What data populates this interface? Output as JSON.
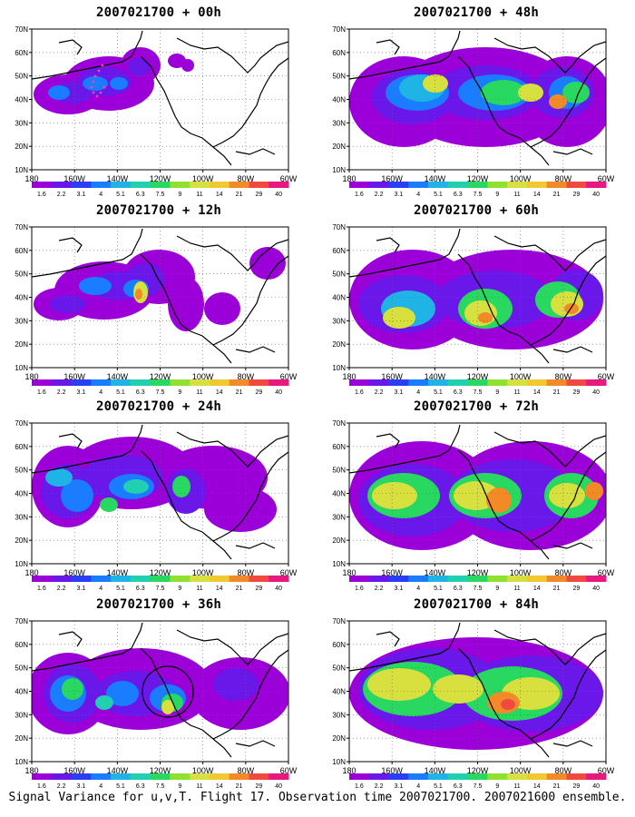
{
  "colorbar": {
    "labels": [
      "1.6",
      "2.2",
      "3.1",
      "4",
      "5.1",
      "6.3",
      "7.5",
      "9",
      "11",
      "14",
      "21",
      "29",
      "40"
    ],
    "colors": [
      "#9b00d8",
      "#6a18ea",
      "#2a3ff5",
      "#1a7cff",
      "#20b4e6",
      "#20d0b0",
      "#28d860",
      "#90e030",
      "#d8e040",
      "#f2c830",
      "#f28a28",
      "#f04a40",
      "#e81880"
    ]
  },
  "axes": {
    "lat_labels": [
      "70N",
      "60N",
      "50N",
      "40N",
      "30N",
      "20N",
      "10N"
    ],
    "lon_labels": [
      "180",
      "160W",
      "140W",
      "120W",
      "100W",
      "80W",
      "60W"
    ]
  },
  "panels": [
    {
      "title": "2007021700 + 00h",
      "level": 0
    },
    {
      "title": "2007021700 + 12h",
      "level": 1
    },
    {
      "title": "2007021700 + 24h",
      "level": 2
    },
    {
      "title": "2007021700 + 36h",
      "level": 3
    },
    {
      "title": "2007021700 + 48h",
      "level": 4
    },
    {
      "title": "2007021700 + 60h",
      "level": 5
    },
    {
      "title": "2007021700 + 72h",
      "level": 6
    },
    {
      "title": "2007021700 + 84h",
      "level": 7
    }
  ],
  "footer": "Signal Variance for u,v,T. Flight 17. Observation time 2007021700. 2007021600 ensemble."
}
